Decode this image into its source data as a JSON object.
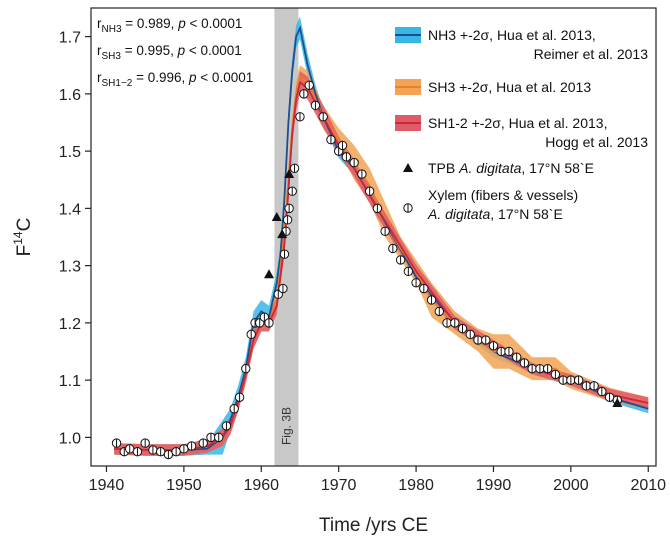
{
  "chart_data": {
    "type": "line",
    "xlabel": "Time /yrs CE",
    "ylabel_base": "F",
    "ylabel_sup": "14",
    "ylabel_suffix": "C",
    "xlim": [
      1938,
      2011
    ],
    "ylim": [
      0.95,
      1.75
    ],
    "x_ticks": [
      1940,
      1950,
      1960,
      1970,
      1980,
      1990,
      2000,
      2010
    ],
    "y_ticks": [
      1.0,
      1.1,
      1.2,
      1.3,
      1.4,
      1.5,
      1.6,
      1.7
    ],
    "y_tick_labels": [
      "1.0",
      "1.1",
      "1.2",
      "1.3",
      "1.4",
      "1.5",
      "1.6",
      "1.7"
    ],
    "shaded_region": {
      "x": [
        1961.7,
        1964.8
      ],
      "label": "Fig. 3B",
      "color": "#c8c8c8"
    },
    "correlations": [
      {
        "r_base": "r",
        "r_sub": "NH3",
        "value_text": " = 0.989, ",
        "p": "p",
        "p_text": " < 0.0001"
      },
      {
        "r_base": "r",
        "r_sub": "SH3",
        "value_text": " = 0.995, ",
        "p": "p",
        "p_text": " < 0.0001"
      },
      {
        "r_base": "r",
        "r_sub": "SH1−2",
        "value_text": " = 0.996, ",
        "p": "p",
        "p_text": " < 0.0001"
      }
    ],
    "series": [
      {
        "name": "NH3 +-2σ, Hua et al. 2013, Reimer et al. 2013",
        "legend_lines": [
          "NH3 +-2σ, Hua et al. 2013,",
          "Reimer et al. 2013"
        ],
        "color": "#1f4e8c",
        "band_color": "#38b6e6",
        "x": [
          1941,
          1945,
          1950,
          1953,
          1954,
          1955,
          1956,
          1957,
          1958,
          1959,
          1960,
          1961,
          1962,
          1962.5,
          1963,
          1963.5,
          1964,
          1964.5,
          1965,
          1966,
          1967,
          1968,
          1970,
          1972,
          1975,
          1980,
          1985,
          1990,
          1995,
          2000,
          2005,
          2010
        ],
        "y": [
          0.98,
          0.978,
          0.978,
          0.98,
          0.99,
          1.0,
          1.03,
          1.07,
          1.12,
          1.2,
          1.22,
          1.21,
          1.27,
          1.32,
          1.42,
          1.55,
          1.64,
          1.7,
          1.715,
          1.65,
          1.6,
          1.56,
          1.5,
          1.47,
          1.4,
          1.28,
          1.2,
          1.15,
          1.12,
          1.1,
          1.07,
          1.05
        ],
        "band": [
          0.01,
          0.01,
          0.01,
          0.01,
          0.02,
          0.03,
          0.02,
          0.02,
          0.02,
          0.02,
          0.02,
          0.02,
          0.02,
          0.02,
          0.02,
          0.02,
          0.02,
          0.02,
          0.02,
          0.02,
          0.015,
          0.015,
          0.012,
          0.012,
          0.012,
          0.01,
          0.01,
          0.01,
          0.008,
          0.008,
          0.008,
          0.008
        ]
      },
      {
        "name": "SH3 +-2σ, Hua et al. 2013",
        "legend_lines": [
          "SH3 +-2σ, Hua et al. 2013"
        ],
        "color": "#e8822a",
        "band_color": "#f2a355",
        "x": [
          1941,
          1945,
          1950,
          1953,
          1955,
          1956,
          1957,
          1958,
          1959,
          1960,
          1961,
          1962,
          1963,
          1963.5,
          1964,
          1964.5,
          1965,
          1966,
          1968,
          1970,
          1972,
          1974,
          1976,
          1978,
          1980,
          1982,
          1985,
          1988,
          1990,
          1992,
          1995,
          1998,
          2000,
          2005,
          2010
        ],
        "y": [
          0.98,
          0.978,
          0.978,
          0.985,
          1.0,
          1.02,
          1.06,
          1.11,
          1.17,
          1.2,
          1.2,
          1.24,
          1.36,
          1.45,
          1.54,
          1.6,
          1.63,
          1.62,
          1.56,
          1.52,
          1.48,
          1.44,
          1.38,
          1.33,
          1.29,
          1.24,
          1.2,
          1.17,
          1.15,
          1.15,
          1.12,
          1.12,
          1.1,
          1.075,
          1.06
        ],
        "band": [
          0.01,
          0.01,
          0.01,
          0.012,
          0.015,
          0.015,
          0.015,
          0.015,
          0.015,
          0.015,
          0.015,
          0.015,
          0.02,
          0.02,
          0.02,
          0.02,
          0.02,
          0.02,
          0.02,
          0.02,
          0.03,
          0.03,
          0.03,
          0.02,
          0.02,
          0.03,
          0.02,
          0.02,
          0.03,
          0.03,
          0.02,
          0.02,
          0.015,
          0.012,
          0.01
        ]
      },
      {
        "name": "SH1-2 +-2σ, Hua et al. 2013, Hogg et al. 2013",
        "legend_lines": [
          "SH1-2 +-2σ, Hua et al. 2013,",
          "Hogg et al. 2013"
        ],
        "color": "#c8283a",
        "band_color": "#e05a68",
        "x": [
          1941,
          1945,
          1950,
          1953,
          1955,
          1956,
          1957,
          1958,
          1959,
          1960,
          1961,
          1962,
          1963,
          1963.5,
          1964,
          1964.5,
          1965,
          1966,
          1968,
          1970,
          1972,
          1975,
          1980,
          1985,
          1990,
          1995,
          2000,
          2005,
          2010
        ],
        "y": [
          0.98,
          0.978,
          0.978,
          0.985,
          1.0,
          1.02,
          1.06,
          1.11,
          1.17,
          1.2,
          1.2,
          1.23,
          1.34,
          1.43,
          1.53,
          1.59,
          1.62,
          1.61,
          1.56,
          1.51,
          1.47,
          1.4,
          1.29,
          1.2,
          1.16,
          1.12,
          1.1,
          1.075,
          1.06
        ],
        "band": [
          0.01,
          0.01,
          0.01,
          0.012,
          0.015,
          0.015,
          0.015,
          0.015,
          0.015,
          0.015,
          0.015,
          0.015,
          0.02,
          0.02,
          0.02,
          0.02,
          0.02,
          0.02,
          0.02,
          0.015,
          0.015,
          0.015,
          0.012,
          0.012,
          0.01,
          0.01,
          0.01,
          0.01,
          0.01
        ]
      }
    ],
    "tpb": {
      "label_pre": "TPB ",
      "label_ital": "A. digitata",
      "label_post": ", 17°N 58`E",
      "marker": "triangle",
      "x": [
        1961,
        1962,
        1962.7,
        1963.6,
        2006
      ],
      "y": [
        1.285,
        1.385,
        1.355,
        1.46,
        1.06
      ]
    },
    "xylem": {
      "label_line1": "Xylem (fibers & vessels)",
      "label_ital": "A. digitata",
      "label_post": ", 17°N 58`E",
      "marker": "open-circle-bar",
      "x": [
        1941.3,
        1942.3,
        1943,
        1944,
        1945,
        1946,
        1947,
        1948,
        1949,
        1950,
        1951,
        1952.5,
        1953.5,
        1954.5,
        1955.5,
        1956.5,
        1957.2,
        1958,
        1958.7,
        1959.2,
        1959.8,
        1960.4,
        1961,
        1962.2,
        1962.8,
        1963,
        1963.2,
        1963.4,
        1963.6,
        1964,
        1964.3,
        1965,
        1965.5,
        1966.2,
        1967,
        1968,
        1969,
        1970,
        1970.5,
        1971,
        1972,
        1973,
        1974,
        1975,
        1976,
        1977,
        1978,
        1979,
        1980,
        1981,
        1982,
        1983,
        1984,
        1985,
        1986,
        1987,
        1988,
        1989,
        1990,
        1991,
        1992,
        1993,
        1994,
        1995,
        1996,
        1997,
        1998,
        1999,
        2000,
        2001,
        2002,
        2003,
        2004,
        2005,
        2006
      ],
      "y": [
        0.99,
        0.975,
        0.98,
        0.975,
        0.99,
        0.978,
        0.975,
        0.97,
        0.975,
        0.98,
        0.985,
        0.99,
        1.0,
        1.0,
        1.02,
        1.05,
        1.07,
        1.12,
        1.18,
        1.2,
        1.2,
        1.21,
        1.2,
        1.25,
        1.26,
        1.32,
        1.36,
        1.38,
        1.4,
        1.43,
        1.47,
        1.56,
        1.6,
        1.615,
        1.58,
        1.56,
        1.52,
        1.5,
        1.51,
        1.49,
        1.48,
        1.46,
        1.43,
        1.4,
        1.36,
        1.33,
        1.31,
        1.29,
        1.27,
        1.26,
        1.24,
        1.22,
        1.2,
        1.2,
        1.19,
        1.18,
        1.17,
        1.17,
        1.16,
        1.15,
        1.15,
        1.14,
        1.13,
        1.12,
        1.12,
        1.12,
        1.11,
        1.1,
        1.1,
        1.1,
        1.09,
        1.09,
        1.08,
        1.07,
        1.065
      ]
    },
    "grid": false,
    "legend_position": "top-right"
  }
}
